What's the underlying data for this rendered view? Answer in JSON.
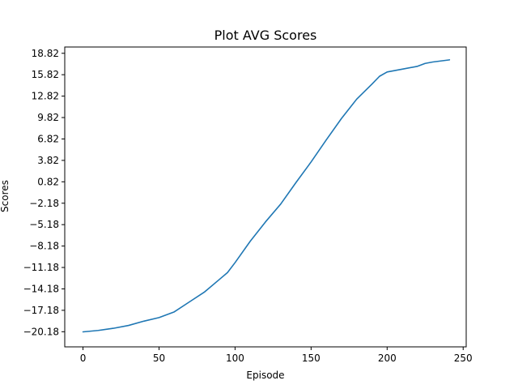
{
  "chart_data": {
    "type": "line",
    "title": "Plot AVG Scores",
    "xlabel": "Episode",
    "ylabel": "Scores",
    "xlim": [
      -12,
      252
    ],
    "ylim": [
      -22.3,
      19.7
    ],
    "x_ticks": [
      0,
      50,
      100,
      150,
      200,
      250
    ],
    "y_ticks": [
      -20.18,
      -17.18,
      -14.18,
      -11.18,
      -8.18,
      -5.18,
      -2.18,
      0.82,
      3.82,
      6.82,
      9.82,
      12.82,
      15.82,
      18.82
    ],
    "y_tick_labels": [
      "−20.18",
      "−17.18",
      "−14.18",
      "−11.18",
      "−8.18",
      "−5.18",
      "−2.18",
      "0.82",
      "3.82",
      "6.82",
      "9.82",
      "12.82",
      "15.82",
      "18.82"
    ],
    "grid": false,
    "series": [
      {
        "color": "#1f77b4",
        "x": [
          0,
          10,
          20,
          30,
          40,
          50,
          60,
          70,
          80,
          90,
          95,
          100,
          110,
          120,
          130,
          140,
          150,
          160,
          170,
          180,
          190,
          195,
          200,
          210,
          220,
          225,
          230,
          241
        ],
        "y": [
          -20.2,
          -20.0,
          -19.7,
          -19.3,
          -18.7,
          -18.2,
          -17.4,
          -16.0,
          -14.6,
          -12.8,
          -11.9,
          -10.5,
          -7.5,
          -4.8,
          -2.3,
          0.7,
          3.6,
          6.7,
          9.7,
          12.4,
          14.5,
          15.6,
          16.2,
          16.6,
          17.0,
          17.4,
          17.6,
          17.9
        ]
      }
    ]
  }
}
